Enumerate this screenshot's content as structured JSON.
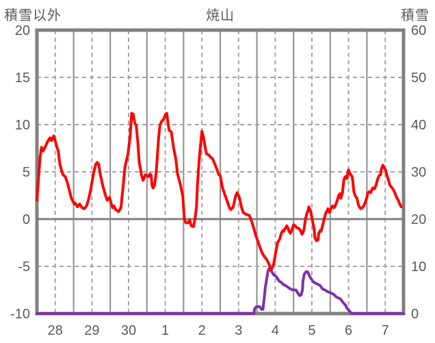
{
  "header": {
    "left_axis_title": "積雪以外",
    "chart_title": "焼山",
    "right_axis_title": "積雪"
  },
  "colors": {
    "temperature_line": "#FF0000",
    "snow_line": "#7D31A8",
    "grid_dashed": "#A3A3A3",
    "grid_solid": "#8C8C8C",
    "zero_line": "#808080",
    "plot_border": "#808080",
    "label_text": "#595959",
    "background": "#FFFFFF"
  },
  "chart_data": {
    "type": "line",
    "title": "焼山",
    "x_axis": {
      "day_labels": [
        "28",
        "29",
        "30",
        "1",
        "2",
        "3",
        "4",
        "5",
        "6",
        "7"
      ],
      "days_total": 10,
      "hours_per_day": 24,
      "hours_total": 240,
      "grid": "solid at day boundaries, dashed at midday"
    },
    "left_axis": {
      "title": "積雪以外",
      "ticks": [
        20,
        15,
        10,
        5,
        0,
        -5,
        -10
      ],
      "min": -10,
      "max": 20
    },
    "right_axis": {
      "title": "積雪",
      "ticks": [
        60,
        50,
        40,
        30,
        20,
        10,
        0
      ],
      "min": 0,
      "max": 60
    },
    "series": [
      {
        "name": "積雪以外",
        "axis": "left",
        "color": "#FF0000",
        "points": [
          [
            0,
            2.0
          ],
          [
            1,
            4.2
          ],
          [
            2,
            6.5
          ],
          [
            3,
            7.6
          ],
          [
            4,
            7.2
          ],
          [
            5,
            7.5
          ],
          [
            7,
            8.2
          ],
          [
            8.5,
            8.6
          ],
          [
            9.5,
            8.3
          ],
          [
            11,
            8.8
          ],
          [
            12.5,
            8.0
          ],
          [
            14,
            7.1
          ],
          [
            15,
            5.8
          ],
          [
            17,
            4.7
          ],
          [
            18.5,
            4.5
          ],
          [
            20,
            3.8
          ],
          [
            21,
            3.2
          ],
          [
            22.5,
            2.2
          ],
          [
            23.5,
            1.9
          ],
          [
            24.5,
            1.6
          ],
          [
            25,
            1.7
          ],
          [
            26.5,
            1.3
          ],
          [
            28,
            1.6
          ],
          [
            29.5,
            1.2
          ],
          [
            31,
            1.1
          ],
          [
            32.5,
            1.4
          ],
          [
            34,
            2.2
          ],
          [
            35.5,
            3.4
          ],
          [
            37,
            4.8
          ],
          [
            38.5,
            5.8
          ],
          [
            39.5,
            6.0
          ],
          [
            40.5,
            5.8
          ],
          [
            41.5,
            4.7
          ],
          [
            43,
            3.6
          ],
          [
            44.5,
            2.7
          ],
          [
            46,
            2.0
          ],
          [
            47.5,
            2.3
          ],
          [
            48.5,
            1.7
          ],
          [
            49.5,
            1.2
          ],
          [
            50.5,
            1.4
          ],
          [
            51.5,
            1.0
          ],
          [
            53.5,
            0.8
          ],
          [
            55,
            1.2
          ],
          [
            56.5,
            3.6
          ],
          [
            57.5,
            5.3
          ],
          [
            58,
            5.8
          ],
          [
            59.5,
            6.8
          ],
          [
            61,
            8.7
          ],
          [
            62,
            11.2
          ],
          [
            63,
            11.1
          ],
          [
            64,
            10.2
          ],
          [
            65,
            9.9
          ],
          [
            66,
            8.2
          ],
          [
            67,
            6.0
          ],
          [
            68.5,
            4.6
          ],
          [
            69.5,
            4.1
          ],
          [
            70.5,
            4.5
          ],
          [
            71,
            4.7
          ],
          [
            72,
            4.6
          ],
          [
            73,
            4.5
          ],
          [
            74,
            4.8
          ],
          [
            74.8,
            4.6
          ],
          [
            75.3,
            3.6
          ],
          [
            76,
            3.3
          ],
          [
            77,
            3.6
          ],
          [
            78,
            4.8
          ],
          [
            79,
            7.0
          ],
          [
            79.7,
            8.7
          ],
          [
            80.5,
            9.9
          ],
          [
            81.5,
            10.3
          ],
          [
            83,
            10.6
          ],
          [
            84,
            11.0
          ],
          [
            85,
            11.2
          ],
          [
            86.5,
            9.4
          ],
          [
            87.5,
            9.3
          ],
          [
            88,
            9.2
          ],
          [
            89.5,
            7.5
          ],
          [
            91,
            6.3
          ],
          [
            92,
            4.8
          ],
          [
            94,
            3.6
          ],
          [
            95.5,
            2.4
          ],
          [
            96.5,
            0.0
          ],
          [
            97.5,
            -0.4
          ],
          [
            99,
            -0.4
          ],
          [
            100,
            -0.1
          ],
          [
            101,
            -0.7
          ],
          [
            102.5,
            -0.8
          ],
          [
            103.5,
            0.0
          ],
          [
            104.5,
            1.4
          ],
          [
            105,
            3.4
          ],
          [
            106,
            5.8
          ],
          [
            107,
            7.7
          ],
          [
            108,
            9.3
          ],
          [
            109,
            8.7
          ],
          [
            110,
            7.7
          ],
          [
            111,
            6.9
          ],
          [
            112.5,
            6.8
          ],
          [
            114,
            6.5
          ],
          [
            115,
            6.4
          ],
          [
            116.5,
            5.8
          ],
          [
            118,
            5.2
          ],
          [
            119,
            4.7
          ],
          [
            120,
            4.6
          ],
          [
            121.5,
            3.3
          ],
          [
            123,
            2.6
          ],
          [
            124.5,
            1.9
          ],
          [
            126,
            1.2
          ],
          [
            127,
            1.0
          ],
          [
            128.5,
            1.3
          ],
          [
            130,
            2.4
          ],
          [
            131,
            2.8
          ],
          [
            132.5,
            2.3
          ],
          [
            134,
            1.2
          ],
          [
            135,
            0.7
          ],
          [
            137,
            0.5
          ],
          [
            139,
            0.4
          ],
          [
            140,
            0.0
          ],
          [
            141.5,
            -0.7
          ],
          [
            143,
            -1.6
          ],
          [
            144.5,
            -2.3
          ],
          [
            146,
            -3.0
          ],
          [
            147.5,
            -3.6
          ],
          [
            149,
            -4.0
          ],
          [
            150.5,
            -4.3
          ],
          [
            152,
            -4.8
          ],
          [
            153,
            -5.4
          ],
          [
            154,
            -5.2
          ],
          [
            155,
            -4.7
          ],
          [
            156.5,
            -3.4
          ],
          [
            157.5,
            -2.5
          ],
          [
            159,
            -2.1
          ],
          [
            160,
            -1.5
          ],
          [
            161,
            -1.2
          ],
          [
            161.5,
            -1.3
          ],
          [
            162.5,
            -1.0
          ],
          [
            163.5,
            -0.7
          ],
          [
            164.5,
            -1.0
          ],
          [
            165,
            -1.3
          ],
          [
            166,
            -1.5
          ],
          [
            167,
            -1.1
          ],
          [
            168,
            -0.6
          ],
          [
            169,
            -0.7
          ],
          [
            170,
            -0.9
          ],
          [
            171.5,
            -1.0
          ],
          [
            172.5,
            -1.2
          ],
          [
            173.5,
            -1.6
          ],
          [
            174,
            -1.5
          ],
          [
            175,
            -1.0
          ],
          [
            175.5,
            -0.3
          ],
          [
            176.5,
            0.5
          ],
          [
            177.5,
            0.9
          ],
          [
            178,
            1.3
          ],
          [
            179,
            0.9
          ],
          [
            180,
            0.2
          ],
          [
            180.5,
            -0.3
          ],
          [
            181.5,
            -1.0
          ],
          [
            182,
            -2.0
          ],
          [
            183,
            -2.3
          ],
          [
            184,
            -2.2
          ],
          [
            184.5,
            -1.5
          ],
          [
            185.5,
            -1.2
          ],
          [
            186,
            -1.3
          ],
          [
            187,
            -0.7
          ],
          [
            188,
            0.0
          ],
          [
            189,
            0.6
          ],
          [
            190,
            0.9
          ],
          [
            190.5,
            1.1
          ],
          [
            191.5,
            0.7
          ],
          [
            192.5,
            1.1
          ],
          [
            193.5,
            1.4
          ],
          [
            194.5,
            1.2
          ],
          [
            195,
            1.3
          ],
          [
            196.5,
            1.9
          ],
          [
            197.5,
            2.5
          ],
          [
            198.5,
            2.7
          ],
          [
            199,
            2.2
          ],
          [
            200,
            2.8
          ],
          [
            201,
            4.2
          ],
          [
            202,
            4.5
          ],
          [
            203,
            4.3
          ],
          [
            203.5,
            4.9
          ],
          [
            204,
            5.2
          ],
          [
            205,
            4.8
          ],
          [
            206,
            4.6
          ],
          [
            206.5,
            4.4
          ],
          [
            207.5,
            2.9
          ],
          [
            208.5,
            2.4
          ],
          [
            209.5,
            2.2
          ],
          [
            210.5,
            1.5
          ],
          [
            211,
            1.3
          ],
          [
            212,
            1.1
          ],
          [
            213,
            1.2
          ],
          [
            214,
            1.4
          ],
          [
            215,
            1.8
          ],
          [
            216,
            2.3
          ],
          [
            216.5,
            2.7
          ],
          [
            217.5,
            2.9
          ],
          [
            218.5,
            2.8
          ],
          [
            219.5,
            3.2
          ],
          [
            220,
            3.3
          ],
          [
            221,
            3.2
          ],
          [
            222,
            3.6
          ],
          [
            223,
            4.2
          ],
          [
            224,
            4.6
          ],
          [
            225,
            4.7
          ],
          [
            225.5,
            5.3
          ],
          [
            226.5,
            5.7
          ],
          [
            227.5,
            5.4
          ],
          [
            228.5,
            5.1
          ],
          [
            229,
            4.7
          ],
          [
            230,
            4.2
          ],
          [
            231,
            3.6
          ],
          [
            232,
            3.4
          ],
          [
            233,
            3.2
          ],
          [
            234,
            2.9
          ],
          [
            234.5,
            2.7
          ],
          [
            235.5,
            2.3
          ],
          [
            236.5,
            2.0
          ],
          [
            237.5,
            1.6
          ],
          [
            238.5,
            1.3
          ]
        ]
      },
      {
        "name": "積雪",
        "axis": "right",
        "color": "#7D31A8",
        "points": [
          [
            0,
            0
          ],
          [
            142,
            0
          ],
          [
            142.5,
            1.0
          ],
          [
            143.5,
            1.4
          ],
          [
            145,
            1.5
          ],
          [
            146,
            1.4
          ],
          [
            147,
            0.9
          ],
          [
            148,
            0.9
          ],
          [
            148.7,
            3.0
          ],
          [
            149.5,
            5.5
          ],
          [
            150.5,
            7.5
          ],
          [
            151.3,
            9.0
          ],
          [
            152,
            9.5
          ],
          [
            153.5,
            9.0
          ],
          [
            155,
            8.2
          ],
          [
            156.5,
            7.9
          ],
          [
            158.5,
            6.9
          ],
          [
            160,
            6.6
          ],
          [
            161.5,
            6.1
          ],
          [
            163,
            5.9
          ],
          [
            165,
            5.4
          ],
          [
            166,
            5.2
          ],
          [
            167.5,
            5.0
          ],
          [
            169.5,
            5.0
          ],
          [
            170.5,
            4.5
          ],
          [
            171.5,
            4.0
          ],
          [
            172,
            3.8
          ],
          [
            173,
            4.0
          ],
          [
            173.8,
            5.0
          ],
          [
            174.2,
            6.9
          ],
          [
            175,
            8.3
          ],
          [
            176,
            8.8
          ],
          [
            176.5,
            8.9
          ],
          [
            177.3,
            8.8
          ],
          [
            178,
            8.3
          ],
          [
            179,
            7.6
          ],
          [
            181,
            6.7
          ],
          [
            182.5,
            6.4
          ],
          [
            184,
            6.2
          ],
          [
            185.5,
            5.9
          ],
          [
            187,
            5.2
          ],
          [
            188.5,
            5.0
          ],
          [
            190,
            4.7
          ],
          [
            191.5,
            4.5
          ],
          [
            193,
            4.3
          ],
          [
            194.5,
            4.0
          ],
          [
            196,
            3.5
          ],
          [
            197.5,
            3.3
          ],
          [
            199,
            3.0
          ],
          [
            200.5,
            2.3
          ],
          [
            202,
            1.8
          ],
          [
            203,
            1.1
          ],
          [
            205,
            0.4
          ],
          [
            206,
            0
          ],
          [
            240,
            0
          ]
        ]
      }
    ],
    "legend": "none",
    "grid": "on"
  }
}
